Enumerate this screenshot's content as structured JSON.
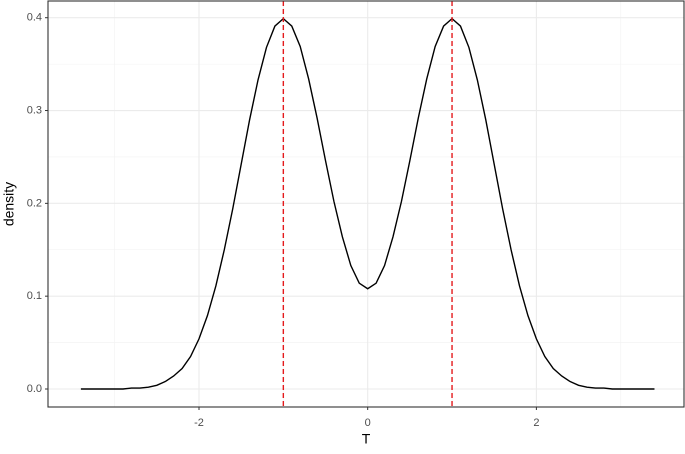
{
  "chart_data": {
    "type": "line",
    "x_label": "T",
    "y_label": "density",
    "x": [
      -3.4,
      -3.3,
      -3.2,
      -3.1,
      -3.0,
      -2.9,
      -2.8,
      -2.7,
      -2.6,
      -2.5,
      -2.4,
      -2.3,
      -2.2,
      -2.1,
      -2.0,
      -1.9,
      -1.8,
      -1.7,
      -1.6,
      -1.5,
      -1.4,
      -1.3,
      -1.2,
      -1.1,
      -1.0,
      -0.9,
      -0.8,
      -0.7,
      -0.6,
      -0.5,
      -0.4,
      -0.3,
      -0.2,
      -0.1,
      0,
      0.1,
      0.2,
      0.3,
      0.4,
      0.5,
      0.6,
      0.7,
      0.8,
      0.9,
      1.0,
      1.1,
      1.2,
      1.3,
      1.4,
      1.5,
      1.6,
      1.7,
      1.8,
      1.9,
      2.0,
      2.1,
      2.2,
      2.3,
      2.4,
      2.5,
      2.6,
      2.7,
      2.8,
      2.9,
      3.0,
      3.1,
      3.2,
      3.3,
      3.4
    ],
    "series": [
      {
        "color": "#000000",
        "values": [
          0,
          0,
          0,
          0,
          0,
          0,
          0.001,
          0.001,
          0.002,
          0.004,
          0.008,
          0.014,
          0.022,
          0.035,
          0.054,
          0.079,
          0.111,
          0.15,
          0.194,
          0.242,
          0.29,
          0.333,
          0.368,
          0.391,
          0.399,
          0.391,
          0.369,
          0.334,
          0.292,
          0.246,
          0.202,
          0.164,
          0.133,
          0.114,
          0.108,
          0.114,
          0.133,
          0.164,
          0.202,
          0.246,
          0.292,
          0.334,
          0.369,
          0.391,
          0.399,
          0.391,
          0.368,
          0.333,
          0.29,
          0.242,
          0.194,
          0.15,
          0.111,
          0.079,
          0.054,
          0.035,
          0.022,
          0.014,
          0.008,
          0.004,
          0.002,
          0.001,
          0.001,
          0,
          0,
          0,
          0,
          0,
          0
        ]
      }
    ],
    "vlines": [
      -1,
      1
    ],
    "vline_color": "#e41a1c",
    "xlim": [
      -3.79,
      3.75
    ],
    "ylim": [
      -0.0194,
      0.418
    ],
    "xticks": [
      -2,
      0,
      2
    ],
    "yticks": [
      {
        "value": 0,
        "label": "0.0"
      },
      0.1,
      0.2,
      0.3,
      0.4
    ],
    "minor_xticks": [
      -3,
      -1,
      1,
      3
    ],
    "minor_yticks": [
      0.05,
      0.15,
      0.25,
      0.35
    ],
    "grid": true
  }
}
